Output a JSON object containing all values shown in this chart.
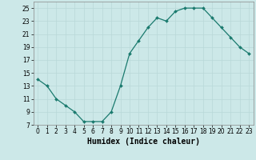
{
  "x": [
    0,
    1,
    2,
    3,
    4,
    5,
    6,
    7,
    8,
    9,
    10,
    11,
    12,
    13,
    14,
    15,
    16,
    17,
    18,
    19,
    20,
    21,
    22,
    23
  ],
  "y": [
    14.0,
    13.0,
    11.0,
    10.0,
    9.0,
    7.5,
    7.5,
    7.5,
    9.0,
    13.0,
    18.0,
    20.0,
    22.0,
    23.5,
    23.0,
    24.5,
    25.0,
    25.0,
    25.0,
    23.5,
    22.0,
    20.5,
    19.0,
    18.0
  ],
  "line_color": "#1a7a6e",
  "marker": "D",
  "marker_size": 2.0,
  "bg_color": "#cce8e8",
  "grid_color": "#b8d8d8",
  "xlabel": "Humidex (Indice chaleur)",
  "xlim": [
    -0.5,
    23.5
  ],
  "ylim": [
    7,
    26
  ],
  "yticks": [
    7,
    9,
    11,
    13,
    15,
    17,
    19,
    21,
    23,
    25
  ],
  "xticks": [
    0,
    1,
    2,
    3,
    4,
    5,
    6,
    7,
    8,
    9,
    10,
    11,
    12,
    13,
    14,
    15,
    16,
    17,
    18,
    19,
    20,
    21,
    22,
    23
  ],
  "tick_fontsize": 5.5,
  "xlabel_fontsize": 7
}
